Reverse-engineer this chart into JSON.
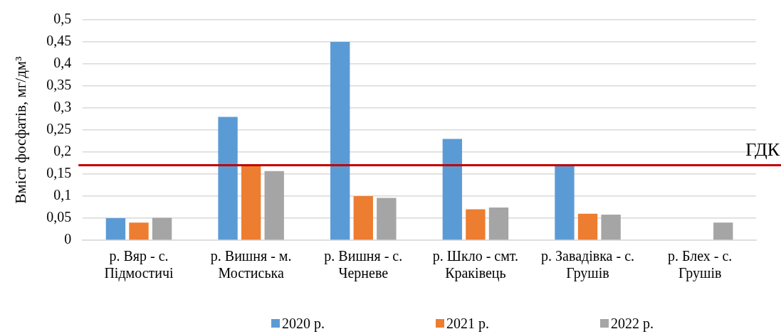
{
  "chart_data": {
    "type": "bar",
    "categories": [
      "р. Вяр - с. Підмостичі",
      "р. Вишня - м. Мостиська",
      "р. Вишня - с. Черневе",
      "р. Шкло - смт. Краківець",
      "р. Завадівка - с. Грушів",
      "р. Блех - с. Грушів"
    ],
    "series": [
      {
        "name": "2020 р.",
        "color": "#5b9bd5",
        "values": [
          0.05,
          0.28,
          0.45,
          0.23,
          0.17,
          null
        ]
      },
      {
        "name": "2021 р.",
        "color": "#ed7d31",
        "values": [
          0.04,
          0.17,
          0.1,
          0.07,
          0.06,
          null
        ]
      },
      {
        "name": "2022 р.",
        "color": "#a5a5a5",
        "values": [
          0.051,
          0.157,
          0.096,
          0.074,
          0.058,
          0.04
        ]
      }
    ],
    "ylabel": "Вміст фосфатів, мг/дм³",
    "ylim": [
      0,
      0.5
    ],
    "yticks": [
      0,
      {
        "value": 0.05,
        "label": "0,05"
      },
      {
        "value": 0.1,
        "label": "0,1"
      },
      {
        "value": 0.15,
        "label": "0,15"
      },
      {
        "value": 0.2,
        "label": "0,2"
      },
      {
        "value": 0.25,
        "label": "0,25"
      },
      {
        "value": 0.3,
        "label": "0,3"
      },
      {
        "value": 0.35,
        "label": "0,35"
      },
      {
        "value": 0.4,
        "label": "0,4"
      },
      {
        "value": 0.45,
        "label": "0,45"
      },
      {
        "value": 0.5,
        "label": "0,5"
      }
    ],
    "grid": "y",
    "legend": "bottom",
    "ref_lines": [
      {
        "axis": "y",
        "value": 0.17,
        "label": "ГДК",
        "color": "#c00000"
      }
    ]
  }
}
